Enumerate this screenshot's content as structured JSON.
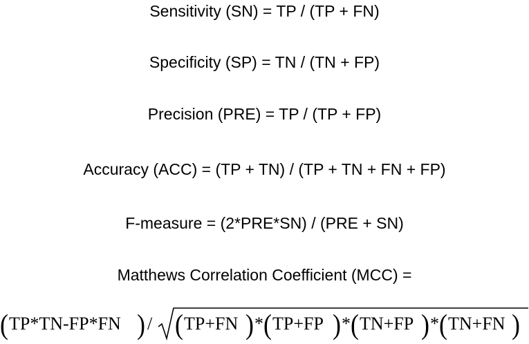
{
  "formulas": {
    "sensitivity": "Sensitivity (SN) = TP / (TP + FN)",
    "specificity": "Specificity (SP) = TN / (TN + FP)",
    "precision": "Precision (PRE) = TP / (TP + FP)",
    "accuracy": "Accuracy (ACC) = (TP + TN) / (TP + TN + FN + FP)",
    "f_measure": "F-measure = (2*PRE*SN) / (PRE + SN)",
    "mcc_label": "Matthews Correlation Coefficient (MCC) ="
  },
  "mcc_expression": {
    "numerator": "TP*TN-FP*FN",
    "divide": "/",
    "factors": [
      "TP+FN",
      "TP+FP",
      "TN+FP",
      "TN+FN"
    ],
    "multiply": "*"
  }
}
